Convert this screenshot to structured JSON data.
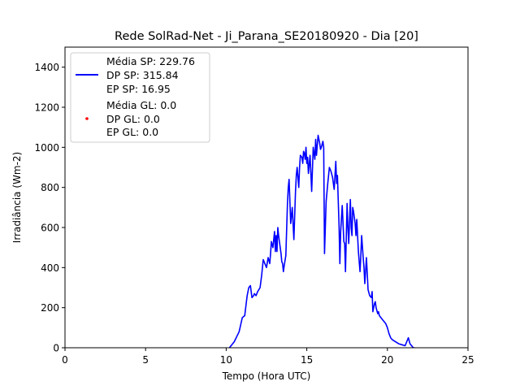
{
  "chart_data": {
    "type": "line",
    "title": "Rede SolRad-Net - Ji_Parana_SE20180920 - Dia [20]",
    "xlabel": "Tempo (Hora UTC)",
    "ylabel": "Irradiância (Wm-2)",
    "xlim": [
      0,
      25
    ],
    "ylim": [
      0,
      1500
    ],
    "xticks": [
      "0",
      "5",
      "10",
      "15",
      "20",
      "25"
    ],
    "yticks": [
      "0",
      "200",
      "400",
      "600",
      "800",
      "1000",
      "1200",
      "1400"
    ],
    "grid": false,
    "legend_position": "top-left",
    "series": [
      {
        "name": "Média SP: 229.76\nDP SP: 315.84\nEP SP: 16.95",
        "legend_lines": [
          "Média SP: 229.76",
          "DP SP: 315.84",
          "EP SP: 16.95"
        ],
        "color": "#0000ff",
        "style": "line",
        "x": [
          10.2,
          10.5,
          10.8,
          11.0,
          11.15,
          11.3,
          11.4,
          11.5,
          11.6,
          11.7,
          11.75,
          11.85,
          11.95,
          12.1,
          12.2,
          12.3,
          12.4,
          12.5,
          12.6,
          12.7,
          12.75,
          12.8,
          12.9,
          13.0,
          13.05,
          13.1,
          13.15,
          13.2,
          13.25,
          13.3,
          13.4,
          13.45,
          13.5,
          13.55,
          13.6,
          13.7,
          13.8,
          13.85,
          13.9,
          14.0,
          14.1,
          14.2,
          14.3,
          14.35,
          14.4,
          14.5,
          14.55,
          14.6,
          14.7,
          14.75,
          14.8,
          14.85,
          14.9,
          14.95,
          15.0,
          15.05,
          15.1,
          15.2,
          15.3,
          15.4,
          15.5,
          15.55,
          15.6,
          15.7,
          15.8,
          15.85,
          15.9,
          16.0,
          16.05,
          16.1,
          16.2,
          16.3,
          16.4,
          16.5,
          16.6,
          16.7,
          16.8,
          16.85,
          16.9,
          17.0,
          17.05,
          17.1,
          17.2,
          17.3,
          17.35,
          17.4,
          17.5,
          17.55,
          17.6,
          17.7,
          17.75,
          17.8,
          17.85,
          17.9,
          18.0,
          18.05,
          18.1,
          18.2,
          18.3,
          18.35,
          18.4,
          18.5,
          18.55,
          18.6,
          18.7,
          18.75,
          18.8,
          18.9,
          19.0,
          19.05,
          19.1,
          19.2,
          19.25,
          19.3,
          19.4,
          19.45,
          19.5,
          19.6,
          19.7,
          19.8,
          19.9,
          20.0,
          20.1,
          20.2,
          20.3,
          20.5,
          20.7,
          20.9,
          21.1,
          21.3,
          21.4,
          21.5,
          21.55,
          21.6,
          21.7
        ],
        "y": [
          0,
          30,
          80,
          150,
          160,
          260,
          300,
          310,
          250,
          260,
          270,
          260,
          280,
          300,
          360,
          440,
          420,
          400,
          450,
          420,
          470,
          530,
          500,
          580,
          480,
          560,
          480,
          600,
          560,
          530,
          470,
          430,
          420,
          380,
          410,
          460,
          720,
          800,
          840,
          620,
          700,
          540,
          780,
          860,
          900,
          800,
          900,
          960,
          950,
          920,
          980,
          970,
          940,
          1000,
          920,
          950,
          870,
          960,
          780,
          1000,
          940,
          1040,
          960,
          1060,
          1020,
          990,
          1000,
          1030,
          1000,
          470,
          730,
          820,
          900,
          880,
          850,
          790,
          930,
          820,
          860,
          610,
          420,
          580,
          710,
          530,
          520,
          380,
          720,
          600,
          520,
          740,
          600,
          560,
          700,
          680,
          620,
          560,
          640,
          480,
          380,
          460,
          560,
          450,
          400,
          320,
          450,
          370,
          290,
          260,
          250,
          280,
          180,
          220,
          230,
          200,
          170,
          180,
          160,
          150,
          140,
          130,
          120,
          100,
          70,
          50,
          40,
          30,
          20,
          15,
          10,
          50,
          20,
          10,
          5,
          0,
          0
        ]
      },
      {
        "name": "Média GL: 0.0\nDP GL: 0.0\nEP GL: 0.0",
        "legend_lines": [
          "Média GL: 0.0",
          "DP GL: 0.0",
          "EP GL: 0.0"
        ],
        "color": "#ff0000",
        "style": "point",
        "x": [],
        "y": []
      }
    ]
  }
}
